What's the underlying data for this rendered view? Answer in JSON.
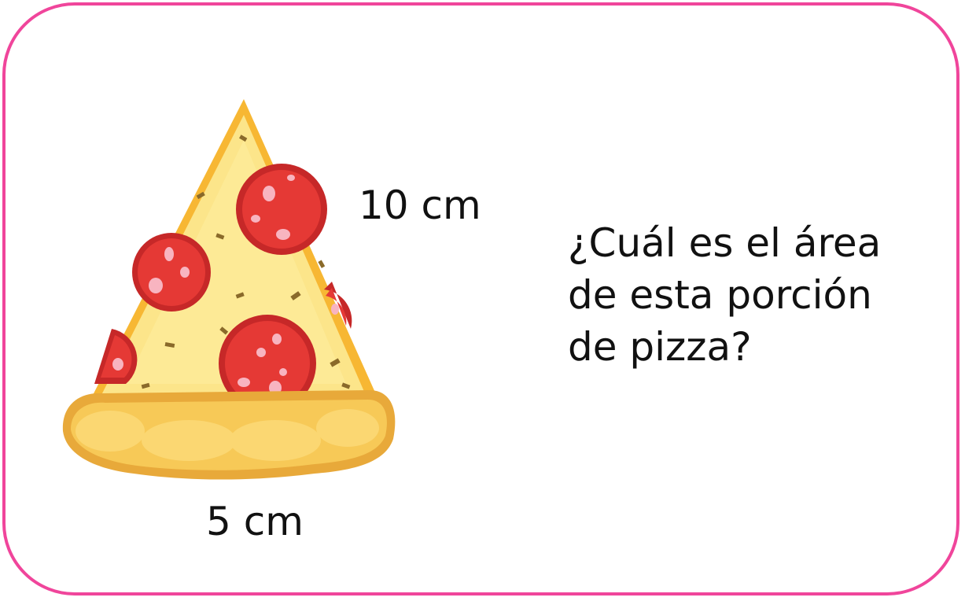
{
  "side_label": "10 cm",
  "base_label": "5 cm",
  "question_lines": [
    "¿Cuál es el área",
    "de esta porción",
    "de pizza?"
  ],
  "colors": {
    "frame_border": "#f0459b",
    "cheese": "#fbe78a",
    "crust": "#f5c04a",
    "pepperoni": "#e53935",
    "pepperoni_spot": "#f8b4c0"
  },
  "icons": {
    "pizza": "pizza-slice-illustration"
  }
}
